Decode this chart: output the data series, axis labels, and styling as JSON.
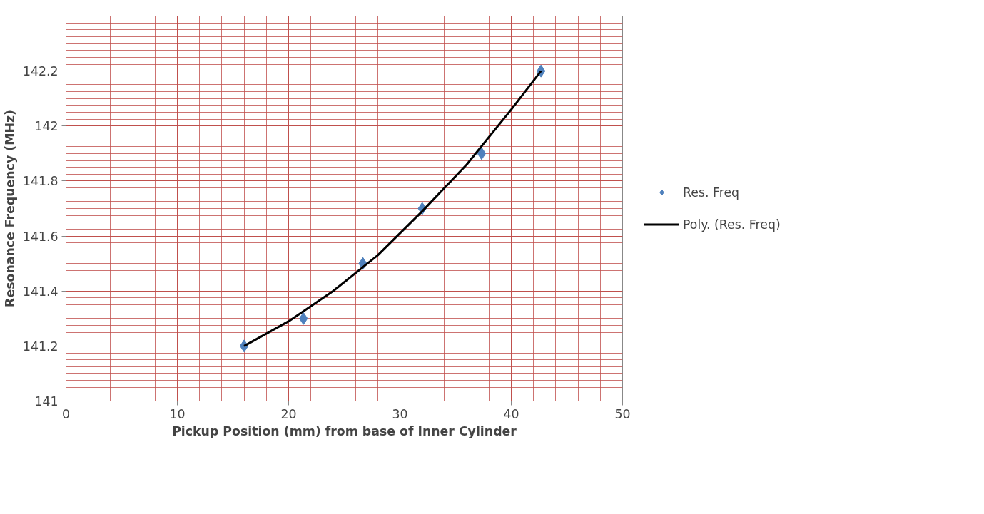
{
  "chart_data": {
    "type": "scatter",
    "xlabel": "Pickup Position (mm) from base of Inner Cylinder",
    "ylabel": "Resonance Frequency (MHz)",
    "xlim": [
      0,
      50
    ],
    "xticks": [
      0,
      10,
      20,
      30,
      40,
      50
    ],
    "ylim": [
      141,
      142.4
    ],
    "yticks": [
      141,
      141.2,
      141.4,
      141.6,
      141.8,
      142,
      142.2
    ],
    "grid": true,
    "legend": "right",
    "marker": "diamond",
    "x": [
      16,
      21.33,
      26.67,
      32,
      37.33,
      42.67
    ],
    "series": [
      {
        "name": "Res. Freq",
        "color": "#4f81bd",
        "values": [
          141.2,
          141.3,
          141.5,
          141.7,
          141.9,
          142.2
        ]
      },
      {
        "name": "Poly. (Res. Freq)",
        "type": "line",
        "color": "#000000",
        "line_style": "solid",
        "marker": "none",
        "x": [
          16,
          20,
          24,
          28,
          32,
          36,
          40,
          42.67
        ],
        "values": [
          141.2,
          141.29,
          141.4,
          141.53,
          141.69,
          141.86,
          142.06,
          142.2
        ]
      }
    ]
  }
}
